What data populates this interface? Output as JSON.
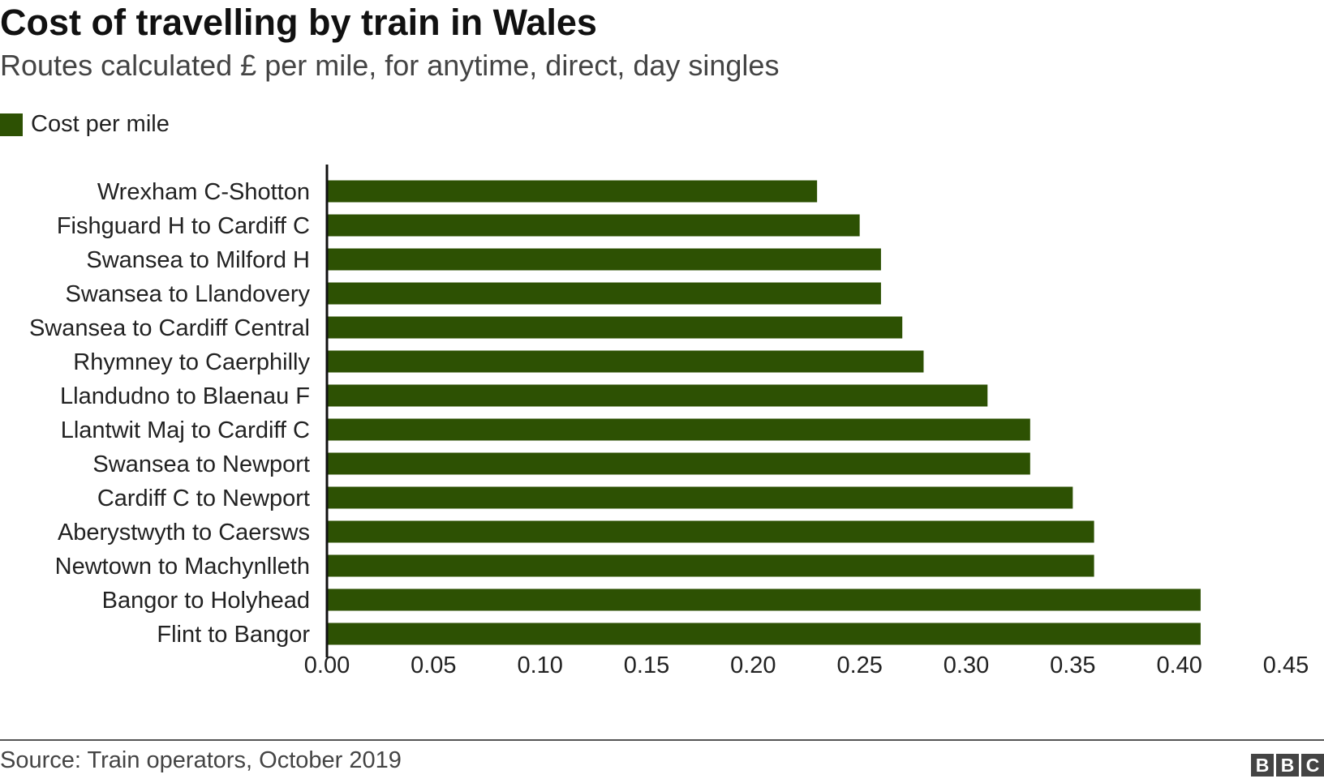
{
  "header": {
    "title": "Cost of travelling by train in Wales",
    "subtitle": "Routes calculated £ per mile, for anytime, direct, day singles"
  },
  "legend": {
    "label": "Cost per mile"
  },
  "footer": {
    "source": "Source: Train operators, October 2019",
    "logo_letters": [
      "B",
      "B",
      "C"
    ]
  },
  "colors": {
    "bar": "#2d5103",
    "axis": "#111111",
    "rule": "#555555"
  },
  "chart_data": {
    "type": "bar",
    "orientation": "horizontal",
    "title": "Cost of travelling by train in Wales",
    "subtitle": "Routes calculated £ per mile, for anytime, direct, day singles",
    "categories": [
      "Wrexham C-Shotton",
      "Fishguard H to Cardiff C",
      "Swansea to Milford H",
      "Swansea to Llandovery",
      "Swansea to Cardiff Central",
      "Rhymney to Caerphilly",
      "Llandudno to Blaenau F",
      "Llantwit Maj to Cardiff C",
      "Swansea to Newport",
      "Cardiff C to Newport",
      "Aberystwyth to Caersws",
      "Newtown to Machynlleth",
      "Bangor to Holyhead",
      "Flint to Bangor"
    ],
    "series": [
      {
        "name": "Cost per mile",
        "values": [
          0.23,
          0.25,
          0.26,
          0.26,
          0.27,
          0.28,
          0.31,
          0.33,
          0.33,
          0.35,
          0.36,
          0.36,
          0.41,
          0.41
        ]
      }
    ],
    "xlim": [
      0,
      0.45
    ],
    "xticks": [
      "0.00",
      "0.05",
      "0.10",
      "0.15",
      "0.20",
      "0.25",
      "0.30",
      "0.35",
      "0.40",
      "0.45"
    ],
    "grid": false,
    "legend_position": "top-left"
  }
}
